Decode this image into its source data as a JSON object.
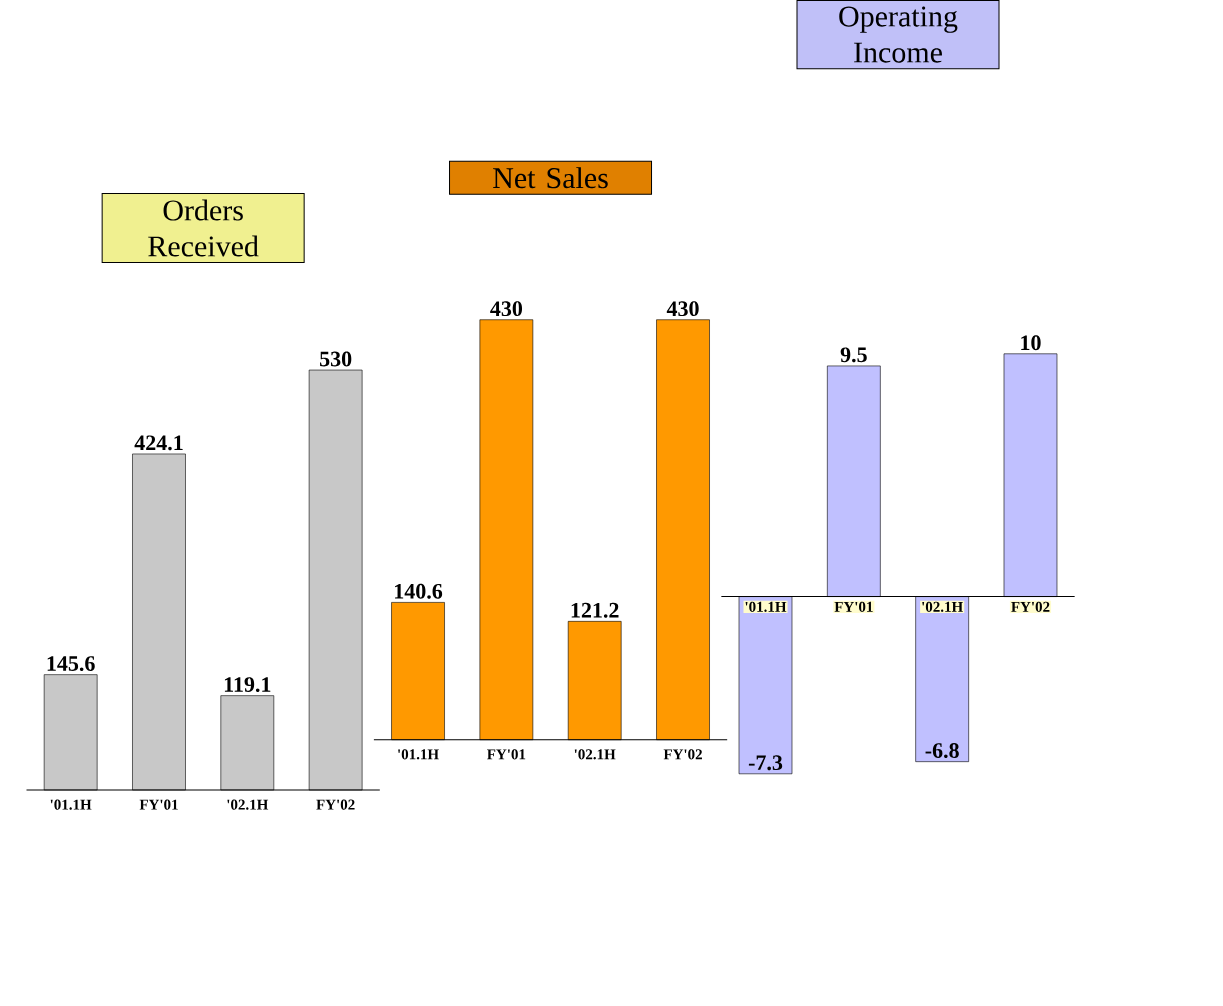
{
  "chart_data": [
    {
      "type": "bar",
      "title": "Orders Received",
      "categories": [
        "'01.1H",
        "FY'01",
        "'02.1H",
        "FY'02"
      ],
      "values": [
        145.6,
        424.1,
        119.1,
        530
      ],
      "color": "#c8c8c8",
      "data_labels": true
    },
    {
      "type": "bar",
      "title": "Net Sales",
      "categories": [
        "'01.1H",
        "FY'01",
        "'02.1H",
        "FY'02"
      ],
      "values": [
        140.6,
        430,
        121.2,
        430
      ],
      "color": "#ff9900",
      "data_labels": true
    },
    {
      "type": "bar",
      "title": "Operating Income",
      "categories": [
        "'01.1H",
        "FY'01",
        "'02.1H",
        "FY'02"
      ],
      "values": [
        -7.3,
        9.5,
        -6.8,
        10
      ],
      "color": "#c0c0ff",
      "data_labels": true
    }
  ]
}
